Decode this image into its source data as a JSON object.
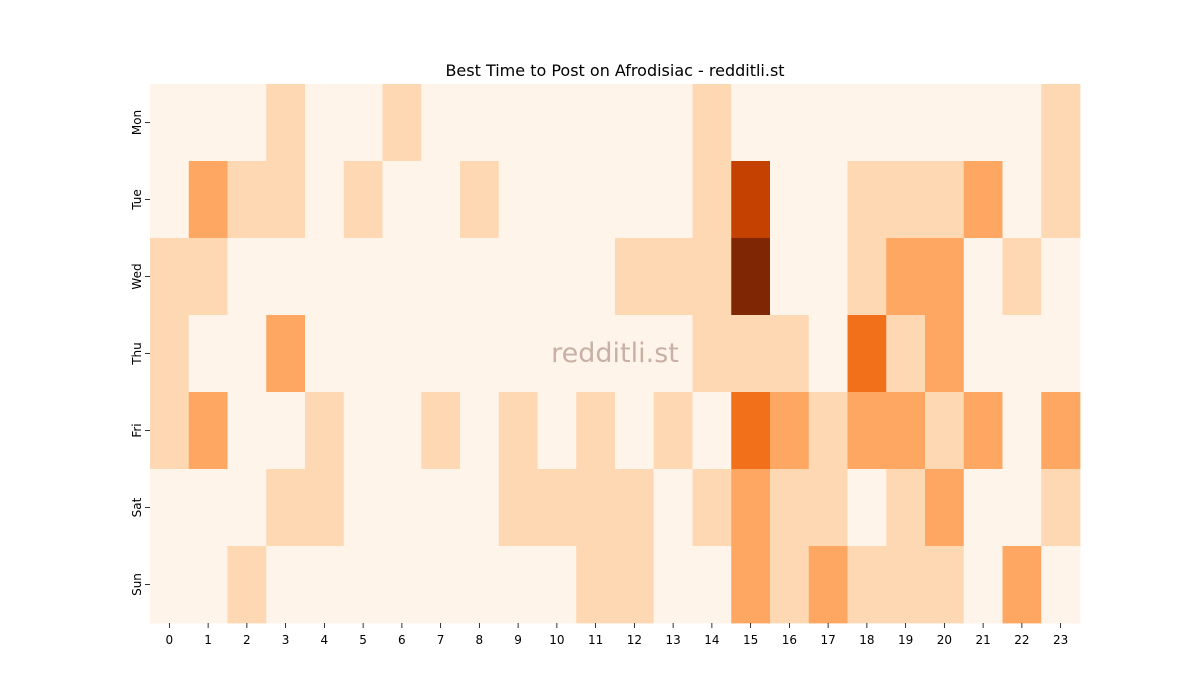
{
  "chart_data": {
    "type": "heatmap",
    "title": "Best Time to Post on Afrodisiac - redditli.st",
    "watermark": "redditli.st",
    "xlabel": "",
    "ylabel": "",
    "x_categories": [
      "0",
      "1",
      "2",
      "3",
      "4",
      "5",
      "6",
      "7",
      "8",
      "9",
      "10",
      "11",
      "12",
      "13",
      "14",
      "15",
      "16",
      "17",
      "18",
      "19",
      "20",
      "21",
      "22",
      "23"
    ],
    "y_categories": [
      "Mon",
      "Tue",
      "Wed",
      "Thu",
      "Fri",
      "Sat",
      "Sun"
    ],
    "values": [
      [
        0,
        0,
        0,
        1,
        0,
        0,
        1,
        0,
        0,
        0,
        0,
        0,
        0,
        0,
        1,
        0,
        0,
        0,
        0,
        0,
        0,
        0,
        0,
        1
      ],
      [
        0,
        2,
        1,
        1,
        0,
        1,
        0,
        0,
        1,
        0,
        0,
        0,
        0,
        0,
        1,
        5,
        0,
        0,
        1,
        1,
        1,
        2,
        0,
        1
      ],
      [
        1,
        1,
        0,
        0,
        0,
        0,
        0,
        0,
        0,
        0,
        0,
        0,
        1,
        1,
        1,
        6,
        0,
        0,
        1,
        2,
        2,
        0,
        1,
        0
      ],
      [
        1,
        0,
        0,
        2,
        0,
        0,
        0,
        0,
        0,
        0,
        0,
        0,
        0,
        0,
        1,
        1,
        1,
        0,
        3,
        1,
        2,
        0,
        0,
        0
      ],
      [
        1,
        2,
        0,
        0,
        1,
        0,
        0,
        1,
        0,
        1,
        0,
        1,
        0,
        1,
        0,
        3,
        2,
        1,
        2,
        2,
        1,
        2,
        0,
        2
      ],
      [
        0,
        0,
        0,
        1,
        1,
        0,
        0,
        0,
        0,
        1,
        1,
        1,
        1,
        0,
        1,
        2,
        1,
        1,
        0,
        1,
        2,
        0,
        0,
        1
      ],
      [
        0,
        0,
        1,
        0,
        0,
        0,
        0,
        0,
        0,
        0,
        0,
        1,
        1,
        0,
        0,
        2,
        1,
        2,
        1,
        1,
        1,
        0,
        2,
        0
      ]
    ],
    "color_scale": [
      "#fff4e9",
      "#fdd8b2",
      "#fda762",
      "#f3701b",
      "#df5306",
      "#c44102",
      "#7f2704"
    ],
    "colorbar": false,
    "grid": false
  }
}
